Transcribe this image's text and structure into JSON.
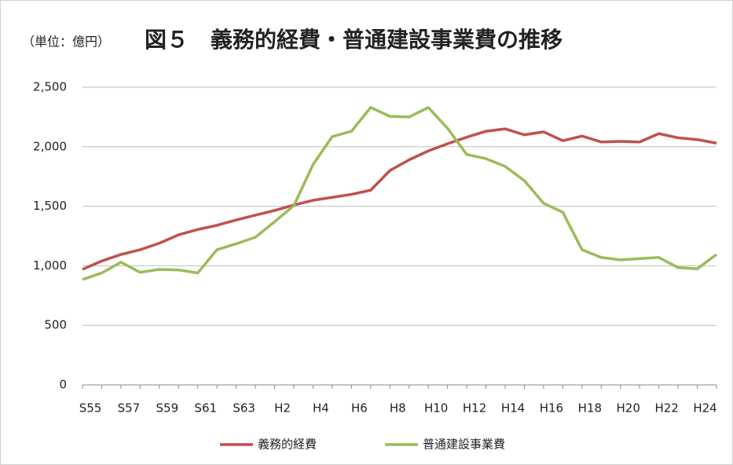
{
  "chart_data": {
    "type": "line",
    "unit_note": "（単位：億円）",
    "title": "図５　義務的経費・普通建設事業費の推移",
    "categories": [
      "S55",
      null,
      "S57",
      null,
      "S59",
      null,
      "S61",
      null,
      "S63",
      null,
      "H2",
      null,
      "H4",
      null,
      "H6",
      null,
      "H8",
      null,
      "H10",
      null,
      "H12",
      null,
      "H14",
      null,
      "H16",
      null,
      "H18",
      null,
      "H20",
      null,
      "H22",
      null,
      "H24",
      null
    ],
    "series": [
      {
        "name": "義務的経費",
        "color": "#c0504d",
        "values": [
          970,
          1040,
          1095,
          1135,
          1190,
          1260,
          1305,
          1340,
          1385,
          1425,
          1465,
          1510,
          1550,
          1575,
          1600,
          1635,
          1800,
          1890,
          1965,
          2025,
          2080,
          2130,
          2150,
          2100,
          2125,
          2050,
          2090,
          2040,
          2045,
          2040,
          2110,
          2075,
          2060,
          2030
        ]
      },
      {
        "name": "普通建設事業費",
        "color": "#9bbb59",
        "values": [
          885,
          940,
          1030,
          945,
          970,
          965,
          940,
          1135,
          1185,
          1240,
          1370,
          1505,
          1850,
          2085,
          2130,
          2330,
          2255,
          2250,
          2330,
          2155,
          1935,
          1900,
          1835,
          1715,
          1525,
          1450,
          1135,
          1070,
          1050,
          1060,
          1070,
          985,
          975,
          1095
        ]
      }
    ],
    "ylim": [
      0,
      2500
    ],
    "yticks": [
      0,
      500,
      {
        "value": 1000,
        "label": "1,000"
      },
      {
        "value": 1500,
        "label": "1,500"
      },
      {
        "value": 2000,
        "label": "2,000"
      },
      {
        "value": 2500,
        "label": "2,500"
      }
    ],
    "grid": true,
    "legend": "bottom"
  }
}
